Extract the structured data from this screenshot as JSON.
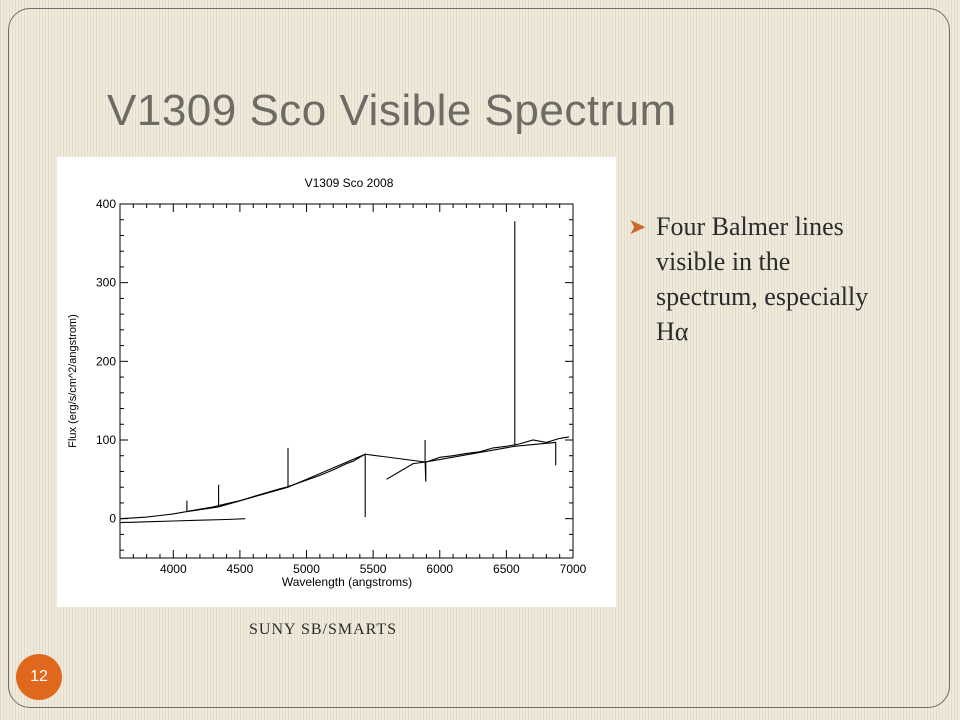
{
  "slide": {
    "title": "V1309 Sco Visible Spectrum",
    "bullet": "Four Balmer lines visible in the spectrum, especially Hα",
    "credit": "SUNY SB/SMARTS",
    "page_number": "12"
  },
  "colors": {
    "accent": "#e0681d",
    "bullet_marker": "#c9692b",
    "title_text": "#6e6a64",
    "body_text": "#2b2b2b"
  },
  "bullet_icon": "arrowhead-bullet-icon",
  "chart_data": {
    "type": "line",
    "title": "V1309 Sco 2008",
    "xlabel": "Wavelength (angstroms)",
    "ylabel": "Flux (erg/s/cm^2/angstrom)",
    "xlim": [
      3600,
      7000
    ],
    "ylim": [
      -50,
      400
    ],
    "xticks": [
      4000,
      4500,
      5000,
      5500,
      6000,
      6500,
      7000
    ],
    "yticks": [
      0,
      100,
      200,
      300,
      400
    ],
    "grid": false,
    "series": [
      {
        "x": [
          3600,
          3700,
          3800,
          3900,
          4000,
          4100,
          4200,
          4300,
          4400,
          4500,
          4600,
          4700,
          4800,
          4850,
          4900,
          5000,
          5100,
          5200,
          5300,
          5350,
          5400,
          5440
        ],
        "y": [
          0,
          1,
          2,
          4,
          6,
          9,
          12,
          15,
          19,
          23,
          28,
          33,
          38,
          40,
          43,
          49,
          55,
          62,
          70,
          73,
          78,
          82
        ]
      },
      {
        "x": [
          3600,
          3800,
          4000,
          4200,
          4400,
          4540
        ],
        "y": [
          -5,
          -4,
          -3,
          -2,
          -1,
          0
        ]
      },
      {
        "x": [
          5600,
          5700,
          5800,
          5900,
          6000,
          6100,
          6200,
          6300,
          6400,
          6500,
          6600,
          6700,
          6800,
          6900,
          6970
        ],
        "y": [
          50,
          60,
          70,
          72,
          78,
          80,
          83,
          85,
          90,
          92,
          95,
          100,
          97,
          102,
          104
        ]
      },
      {
        "x": [
          4102,
          4102,
          4102,
          4340,
          4340,
          4340,
          4861,
          4861,
          4861,
          5440,
          5440,
          5440,
          5890,
          5890,
          5890,
          5895,
          5895,
          6563,
          6563,
          6563,
          6870,
          6870,
          6870
        ],
        "y": [
          9,
          23,
          9,
          15,
          43,
          15,
          40,
          90,
          40,
          82,
          2,
          82,
          72,
          100,
          72,
          47,
          72,
          92,
          378,
          92,
          97,
          68,
          97
        ]
      }
    ]
  }
}
